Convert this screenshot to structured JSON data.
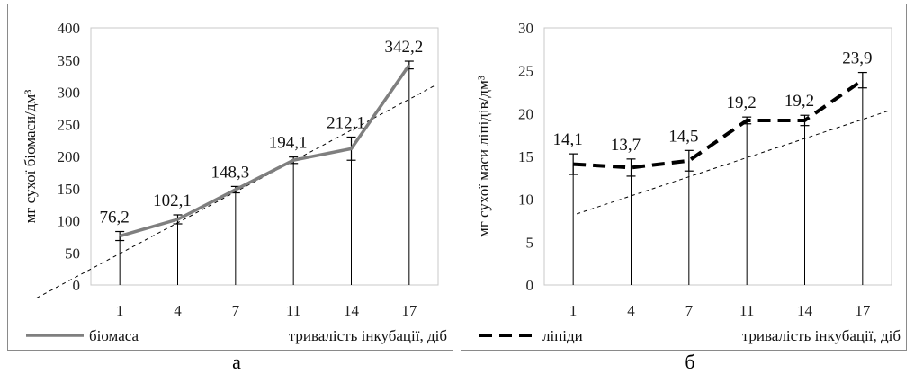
{
  "chart_data": [
    {
      "id": "a",
      "type": "line",
      "x_ticks": [
        "1",
        "4",
        "7",
        "11",
        "14",
        "17"
      ],
      "ylim": [
        0,
        400
      ],
      "y_ticks": [
        "0",
        "50",
        "100",
        "150",
        "200",
        "250",
        "300",
        "350",
        "400"
      ],
      "ylabel": "мг сухої біомаси/дм³",
      "xlabel": "тривалість інкубації, діб",
      "series": [
        {
          "name": "біомаса",
          "style": "solid",
          "color": "#7f7f7f",
          "values": [
            76.2,
            102.1,
            148.3,
            194.1,
            212.1,
            342.2
          ],
          "labels": [
            "76,2",
            "102,1",
            "148,3",
            "194,1",
            "212,1",
            "342,2"
          ],
          "errors": [
            7,
            7,
            5,
            5,
            18,
            6
          ]
        }
      ],
      "trend": [
        -12,
        310
      ],
      "grid": "vertical",
      "legend": "bottom-left"
    },
    {
      "id": "b",
      "type": "line",
      "x_ticks": [
        "1",
        "4",
        "7",
        "11",
        "14",
        "17"
      ],
      "ylim": [
        0,
        30
      ],
      "y_ticks": [
        "0",
        "5",
        "10",
        "15",
        "20",
        "25",
        "30"
      ],
      "ylabel": "мг сухої маси ліпідів/дм³",
      "xlabel": "тривалість інкубації, діб",
      "series": [
        {
          "name": "ліпіди",
          "style": "dashed",
          "color": "#000000",
          "values": [
            14.1,
            13.7,
            14.5,
            19.2,
            19.2,
            23.9
          ],
          "labels": [
            "14,1",
            "13,7",
            "14,5",
            "19,2",
            "19,2",
            "23,9"
          ],
          "errors": [
            1.2,
            1.0,
            1.2,
            0.4,
            0.6,
            0.9
          ]
        }
      ],
      "trend": [
        8.3,
        20.3
      ],
      "grid": "vertical",
      "legend": "bottom-left"
    }
  ],
  "captions": {
    "a": "а",
    "b": "б"
  }
}
